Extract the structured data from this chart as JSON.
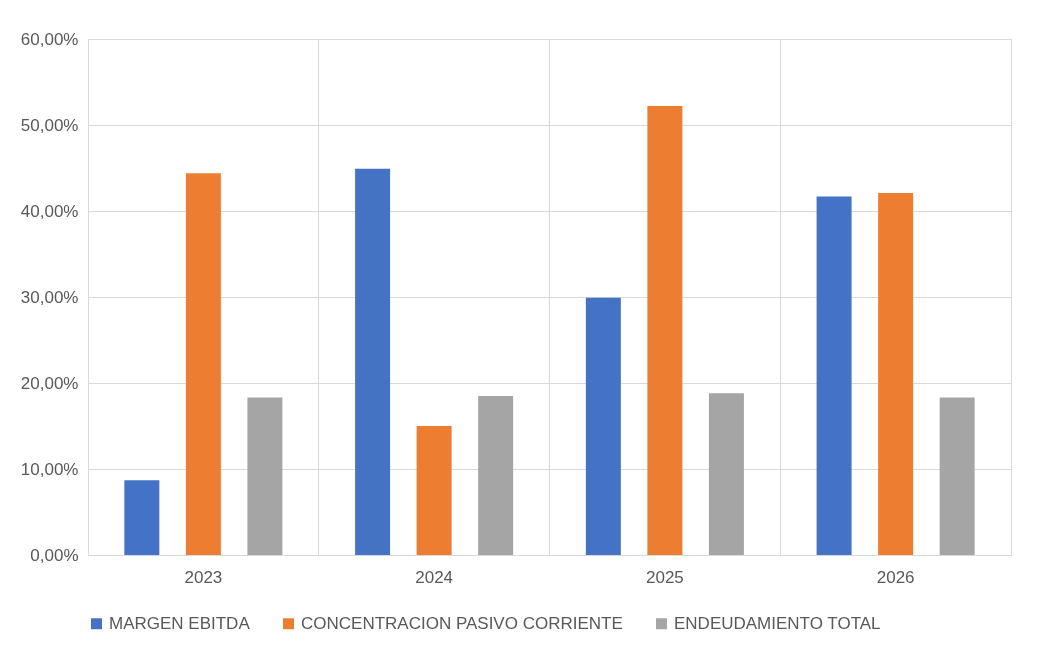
{
  "chart_data": {
    "type": "bar",
    "categories": [
      "2023",
      "2024",
      "2025",
      "2026"
    ],
    "series": [
      {
        "name": "MARGEN EBITDA",
        "color": "#4472c4",
        "values": [
          8.7,
          44.9,
          29.9,
          41.7
        ]
      },
      {
        "name": "CONCENTRACION PASIVO CORRIENTE",
        "color": "#ed7d31",
        "values": [
          44.4,
          15.0,
          52.2,
          42.1
        ]
      },
      {
        "name": "ENDEUDAMIENTO TOTAL",
        "color": "#a5a5a5",
        "values": [
          18.3,
          18.5,
          18.8,
          18.3
        ]
      }
    ],
    "ylim": [
      0,
      60
    ],
    "yticks": [
      {
        "value": 0,
        "label": "0,00%"
      },
      {
        "value": 10,
        "label": "10,00%"
      },
      {
        "value": 20,
        "label": "20,00%"
      },
      {
        "value": 30,
        "label": "30,00%"
      },
      {
        "value": 40,
        "label": "40,00%"
      },
      {
        "value": 50,
        "label": "50,00%"
      },
      {
        "value": 60,
        "label": "60,00%"
      }
    ],
    "grid": true,
    "legend": "bottom"
  }
}
